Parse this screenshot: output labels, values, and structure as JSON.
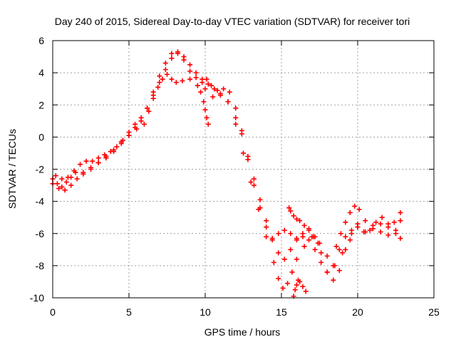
{
  "chart_data": {
    "type": "scatter",
    "title": "Day 240 of 2015, Sidereal Day-to-day VTEC variation (SDTVAR) for receiver tori",
    "xlabel": "GPS time / hours",
    "ylabel": "SDTVAR / TECUs",
    "xlim": [
      0,
      25
    ],
    "ylim": [
      -10,
      6
    ],
    "grid": true,
    "marker": "+",
    "x_ticks": [
      "0",
      "5",
      "10",
      "15",
      "20",
      "25"
    ],
    "y_ticks": [
      "-10",
      "-8",
      "-6",
      "-4",
      "-2",
      "0",
      "2",
      "4",
      "6"
    ],
    "series": [
      {
        "color": "#ff0000",
        "x": [
          0.0,
          0.3,
          0.6,
          0.9,
          1.2,
          1.5,
          2.0,
          2.5,
          3.0,
          3.5,
          4.0,
          4.5,
          5.0,
          5.5,
          6.0,
          6.3,
          6.6,
          6.9,
          7.2,
          7.5,
          7.8,
          8.1,
          8.5,
          9.0,
          9.5,
          10.0,
          10.5,
          11.0,
          11.5,
          12.0,
          12.5,
          13.0,
          13.5,
          14.0,
          14.5,
          14.8,
          15.1,
          15.4,
          15.7,
          16.0,
          16.5,
          17.0,
          17.5,
          18.0,
          18.5,
          19.0,
          19.5,
          20.0,
          20.5,
          21.0,
          21.5,
          22.0,
          22.5,
          22.8
        ],
        "y": [
          -2.6,
          -2.9,
          -3.1,
          -2.8,
          -2.5,
          -2.2,
          -2.3,
          -2.0,
          -1.6,
          -1.3,
          -0.8,
          -0.3,
          0.1,
          0.5,
          0.8,
          1.6,
          2.4,
          3.1,
          3.6,
          3.9,
          3.6,
          3.4,
          3.5,
          3.6,
          3.2,
          3.0,
          2.5,
          2.7,
          2.2,
          0.8,
          -1.0,
          -2.8,
          -4.5,
          -6.2,
          -7.8,
          -8.8,
          -9.4,
          -9.1,
          -8.4,
          -7.6,
          -6.8,
          -6.2,
          -6.6,
          -7.4,
          -8.0,
          -7.2,
          -6.4,
          -5.6,
          -5.9,
          -5.7,
          -5.4,
          -5.6,
          -5.8,
          -5.2
        ]
      },
      {
        "color": "#ff0000",
        "x": [
          0.0,
          0.4,
          0.8,
          1.2,
          1.6,
          2.0,
          2.5,
          3.0,
          3.5,
          4.0,
          4.5,
          5.0,
          5.4,
          5.8,
          6.2,
          6.6,
          7.0,
          7.4,
          7.8,
          8.2,
          8.6,
          9.0,
          9.4,
          9.8,
          10.2,
          10.6,
          11.0,
          11.5,
          12.0,
          12.4,
          12.8,
          13.2,
          13.6,
          14.0,
          14.4,
          14.8,
          15.2,
          15.6,
          16.0,
          16.4,
          16.8,
          17.2,
          17.6,
          18.0,
          18.4,
          18.8,
          19.2,
          19.6,
          20.0,
          20.5,
          21.0,
          21.5,
          22.0,
          22.5,
          22.8
        ],
        "y": [
          -2.9,
          -3.2,
          -3.3,
          -3.0,
          -2.6,
          -2.2,
          -1.9,
          -1.6,
          -1.2,
          -0.9,
          -0.4,
          0.1,
          0.6,
          1.0,
          1.8,
          2.8,
          3.8,
          4.6,
          5.2,
          5.3,
          5.0,
          4.5,
          4.0,
          3.6,
          3.3,
          3.0,
          2.6,
          2.2,
          1.2,
          0.2,
          -1.2,
          -2.6,
          -3.9,
          -5.2,
          -6.4,
          -7.2,
          -7.6,
          -7.0,
          -6.4,
          -6.2,
          -6.4,
          -7.0,
          -7.8,
          -8.4,
          -8.0,
          -7.0,
          -6.2,
          -5.8,
          -5.4,
          -5.2,
          -5.5,
          -5.9,
          -6.1,
          -6.0,
          -6.3
        ]
      },
      {
        "color": "#ff0000",
        "x": [
          0.2,
          0.6,
          1.0,
          1.4,
          1.8,
          2.2,
          2.6,
          3.0,
          3.4,
          3.8,
          4.2,
          4.6,
          5.0,
          5.4,
          5.8,
          6.2,
          6.6,
          7.0,
          7.4,
          7.8,
          8.2,
          8.6,
          9.0,
          9.4,
          9.8,
          10.1,
          10.4,
          10.8,
          11.2,
          11.6,
          12.0,
          12.4,
          12.8,
          13.2,
          13.6,
          14.0,
          14.4,
          14.8,
          15.2,
          15.6,
          16.0,
          16.4,
          16.8,
          17.2,
          17.6,
          18.0,
          18.4,
          18.8,
          19.2,
          19.6,
          20.0,
          20.4,
          20.8,
          21.2,
          21.6,
          22.0,
          22.4,
          22.8
        ],
        "y": [
          -2.4,
          -2.6,
          -2.5,
          -2.1,
          -1.7,
          -1.5,
          -1.5,
          -1.3,
          -1.1,
          -0.9,
          -0.6,
          -0.2,
          0.3,
          0.8,
          1.2,
          1.8,
          2.6,
          3.4,
          4.2,
          4.9,
          5.2,
          4.8,
          4.1,
          3.7,
          3.4,
          3.6,
          3.2,
          2.9,
          3.0,
          2.8,
          1.8,
          0.4,
          -1.4,
          -3.0,
          -4.4,
          -5.6,
          -6.3,
          -6.0,
          -5.8,
          -6.0,
          -6.3,
          -6.0,
          -5.7,
          -6.2,
          -7.2,
          -8.4,
          -8.9,
          -8.3,
          -7.0,
          -6.0,
          -5.6,
          -5.9,
          -5.8,
          -5.3,
          -5.0,
          -5.4,
          -5.3,
          -4.7
        ]
      },
      {
        "color": "#ff0000",
        "x": [
          9.5,
          9.7,
          9.9,
          10.0,
          10.1,
          10.2
        ],
        "y": [
          3.2,
          2.8,
          2.2,
          1.7,
          1.2,
          0.8
        ]
      },
      {
        "color": "#ff0000",
        "x": [
          15.5,
          15.6,
          15.8,
          16.0,
          16.2,
          16.5,
          16.8,
          17.1,
          17.4
        ],
        "y": [
          -4.4,
          -4.6,
          -4.9,
          -5.1,
          -5.2,
          -5.5,
          -5.8,
          -6.2,
          -6.6
        ]
      },
      {
        "color": "#ff0000",
        "x": [
          15.8,
          15.9,
          16.0,
          16.1,
          16.2,
          16.4,
          16.6
        ],
        "y": [
          -9.9,
          -9.5,
          -9.2,
          -8.9,
          -9.0,
          -9.3,
          -9.6
        ]
      },
      {
        "color": "#ff0000",
        "x": [
          18.6,
          18.9,
          19.2,
          19.5,
          19.8,
          20.1
        ],
        "y": [
          -6.8,
          -6.0,
          -5.3,
          -4.7,
          -4.3,
          -4.5
        ]
      }
    ]
  }
}
